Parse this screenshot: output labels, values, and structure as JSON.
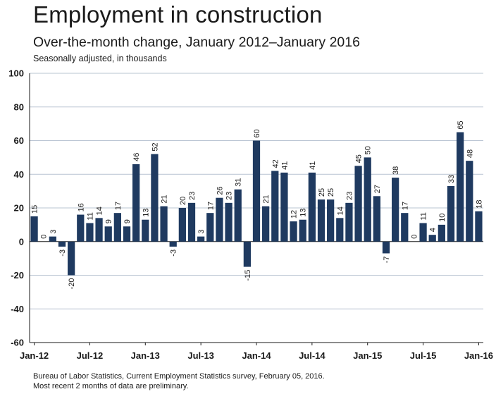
{
  "chart_data": {
    "type": "bar",
    "title": "Employment in construction",
    "subtitle": "Over-the-month change, January 2012–January 2016",
    "ylabel": "Seasonally adjusted, in thousands",
    "ylim": [
      -60,
      100
    ],
    "yticks": [
      "-60",
      "-40",
      "-20",
      "0",
      "20",
      "40",
      "60",
      "80",
      "100"
    ],
    "xticks": [
      "Jan-12",
      "Jul-12",
      "Jan-13",
      "Jul-13",
      "Jan-14",
      "Jul-14",
      "Jan-15",
      "Jul-15",
      "Jan-16"
    ],
    "grid": true,
    "bar_color": "#1f3a60",
    "values": [
      15,
      0,
      3,
      -3,
      -20,
      16,
      11,
      14,
      9,
      17,
      9,
      46,
      13,
      52,
      21,
      -3,
      20,
      23,
      3,
      17,
      26,
      23,
      31,
      -15,
      60,
      21,
      42,
      41,
      12,
      13,
      41,
      25,
      25,
      14,
      23,
      45,
      50,
      27,
      -7,
      38,
      17,
      0,
      11,
      4,
      10,
      33,
      65,
      48,
      18
    ]
  },
  "footnote": {
    "line1": "Bureau of Labor Statistics, Current Employment Statistics survey, February 05, 2016.",
    "line2": "Most recent 2 months of data are preliminary."
  }
}
